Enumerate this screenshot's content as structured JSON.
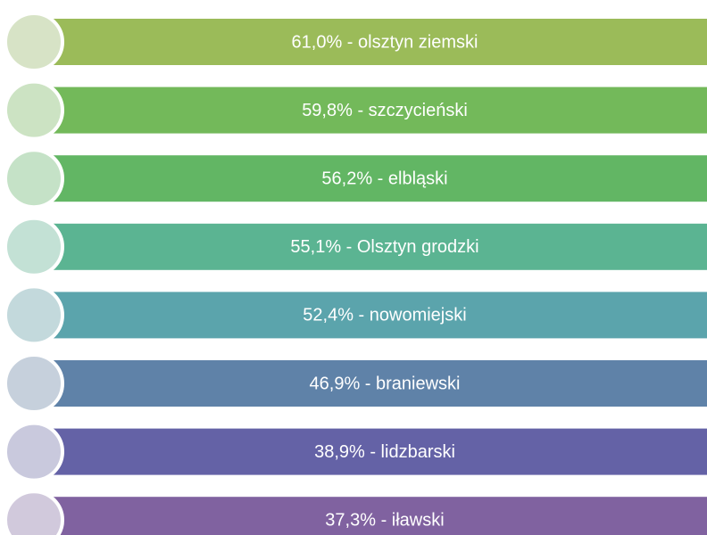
{
  "items": [
    {
      "text": "61,0% - olsztyn ziemski",
      "color": "#9bbb59",
      "circle": "#d7e3c6"
    },
    {
      "text": "59,8% - szczycieński",
      "color": "#73b95a",
      "circle": "#cce3c3"
    },
    {
      "text": "56,2% - elbląski",
      "color": "#62b664",
      "circle": "#c5e2c7"
    },
    {
      "text": "55,1% - Olsztyn grodzki",
      "color": "#5bb492",
      "circle": "#c3e1d5"
    },
    {
      "text": "52,4% - nowomiejski",
      "color": "#5ba4ac",
      "circle": "#c3d9dc"
    },
    {
      "text": "46,9% - braniewski",
      "color": "#5f82a8",
      "circle": "#c6d0dc"
    },
    {
      "text": "38,9% - lidzbarski",
      "color": "#6462a6",
      "circle": "#c9c9dd"
    },
    {
      "text": "37,3% - iławski",
      "color": "#8062a0",
      "circle": "#d1c9dc"
    }
  ]
}
